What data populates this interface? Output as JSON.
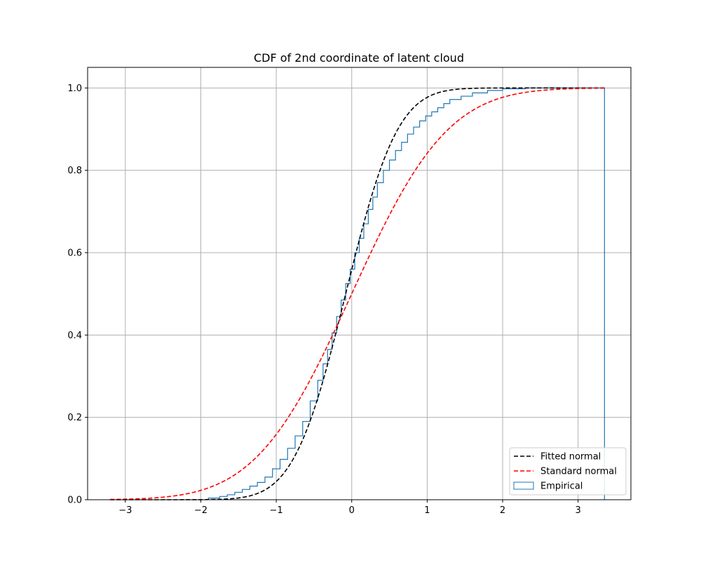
{
  "chart_data": {
    "type": "line",
    "title": "CDF of 2nd coordinate of latent cloud",
    "xlabel": "",
    "ylabel": "",
    "xlim": [
      -3.5,
      3.7
    ],
    "ylim": [
      0.0,
      1.05
    ],
    "grid": true,
    "legend_position": "bottom-right",
    "x_ticks": [
      -3,
      -2,
      -1,
      0,
      1,
      2,
      3
    ],
    "x_tick_labels": [
      "−3",
      "−2",
      "−1",
      "0",
      "1",
      "2",
      "3"
    ],
    "y_ticks": [
      0.0,
      0.2,
      0.4,
      0.6,
      0.8,
      1.0
    ],
    "y_tick_labels": [
      "0.0",
      "0.2",
      "0.4",
      "0.6",
      "0.8",
      "1.0"
    ],
    "series": [
      {
        "name": "Fitted normal",
        "kind": "line",
        "style": "dashed",
        "color": "#000000",
        "distribution": "normal",
        "mean": -0.08,
        "std": 0.54,
        "x_range": [
          -3.2,
          3.35
        ]
      },
      {
        "name": "Standard normal",
        "kind": "line",
        "style": "dashed",
        "color": "#ff0000",
        "distribution": "normal",
        "mean": 0.0,
        "std": 1.0,
        "x_range": [
          -3.2,
          3.35
        ]
      },
      {
        "name": "Empirical",
        "kind": "step",
        "color": "#1f77b4",
        "bin_edges": [
          -1.9,
          -1.75,
          -1.65,
          -1.55,
          -1.45,
          -1.35,
          -1.25,
          -1.15,
          -1.05,
          -0.95,
          -0.85,
          -0.75,
          -0.65,
          -0.55,
          -0.45,
          -0.38,
          -0.32,
          -0.26,
          -0.2,
          -0.14,
          -0.08,
          -0.02,
          0.04,
          0.1,
          0.16,
          0.22,
          0.28,
          0.34,
          0.42,
          0.5,
          0.58,
          0.66,
          0.74,
          0.82,
          0.9,
          0.98,
          1.06,
          1.14,
          1.22,
          1.3,
          1.45,
          1.6,
          1.8,
          2.0,
          2.3,
          3.35
        ],
        "cdf_values": [
          0.004,
          0.008,
          0.012,
          0.018,
          0.025,
          0.033,
          0.042,
          0.055,
          0.075,
          0.098,
          0.125,
          0.155,
          0.19,
          0.24,
          0.29,
          0.33,
          0.365,
          0.405,
          0.445,
          0.485,
          0.525,
          0.56,
          0.6,
          0.635,
          0.67,
          0.705,
          0.735,
          0.77,
          0.8,
          0.825,
          0.848,
          0.868,
          0.888,
          0.905,
          0.92,
          0.932,
          0.942,
          0.952,
          0.962,
          0.972,
          0.98,
          0.988,
          0.994,
          0.998,
          1.0
        ]
      }
    ]
  }
}
